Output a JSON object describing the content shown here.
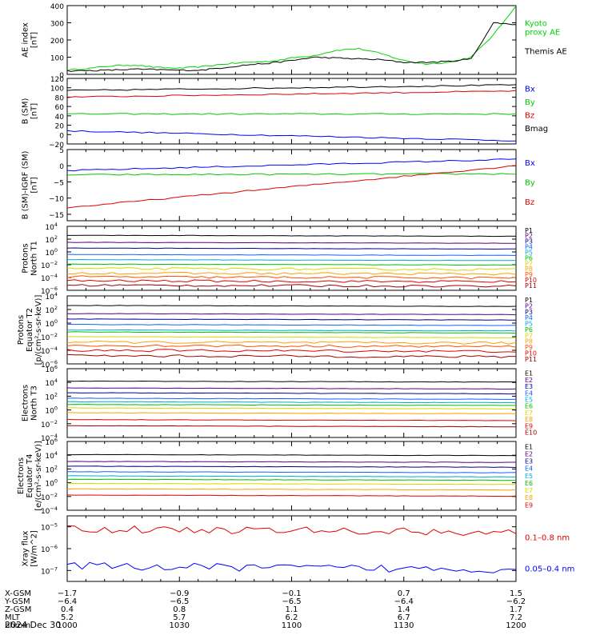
{
  "chart_data": [
    {
      "type": "line",
      "ylabel": [
        "AE index",
        "[nT]"
      ],
      "ylim": [
        0,
        400
      ],
      "yticks": [
        0,
        100,
        200,
        300,
        400
      ],
      "scale": "linear",
      "series": [
        {
          "name": "Kyoto proxy AE",
          "color": "#00d400",
          "legend_lines": [
            "Kyoto",
            "proxy AE"
          ],
          "x": [
            0,
            10,
            20,
            30,
            40,
            50,
            60,
            70,
            80,
            90,
            100,
            110,
            120,
            130,
            140,
            150,
            160,
            170,
            180,
            190,
            200
          ],
          "y": [
            25,
            35,
            50,
            55,
            40,
            35,
            45,
            60,
            70,
            75,
            95,
            110,
            140,
            150,
            120,
            80,
            60,
            70,
            100,
            230,
            400
          ]
        },
        {
          "name": "Themis AE",
          "color": "#000000",
          "legend_lines": [
            "Themis AE"
          ],
          "x": [
            0,
            10,
            20,
            30,
            40,
            50,
            60,
            70,
            80,
            90,
            100,
            110,
            120,
            130,
            140,
            150,
            160,
            170,
            180,
            190,
            200
          ],
          "y": [
            20,
            22,
            25,
            30,
            28,
            24,
            25,
            40,
            55,
            65,
            80,
            100,
            95,
            90,
            85,
            70,
            70,
            75,
            90,
            300,
            290
          ]
        }
      ]
    },
    {
      "type": "line",
      "ylabel": [
        "B (SM)",
        "[nT]"
      ],
      "ylim": [
        -20,
        120
      ],
      "yticks": [
        -20,
        0,
        20,
        40,
        60,
        80,
        100,
        120
      ],
      "scale": "linear",
      "series": [
        {
          "name": "Bx",
          "color": "#0000ff",
          "y_start": 8,
          "y_end": -13
        },
        {
          "name": "By",
          "color": "#00c800",
          "y_start": 44,
          "y_end": 44
        },
        {
          "name": "Bz",
          "color": "#e00000",
          "y_start": 80,
          "y_end": 93
        },
        {
          "name": "Bmag",
          "color": "#000000",
          "y_start": 94,
          "y_end": 106
        }
      ]
    },
    {
      "type": "line",
      "ylabel": [
        "B (SM)-IGRF (SM)",
        "[nT]"
      ],
      "ylim": [
        -17,
        5
      ],
      "yticks": [
        -15,
        -10,
        -5,
        0,
        5
      ],
      "scale": "linear",
      "series": [
        {
          "name": "Bx",
          "color": "#0000ff",
          "y_start": -1.5,
          "y_end": 2
        },
        {
          "name": "By",
          "color": "#00c800",
          "y_start": -2.8,
          "y_end": -2.5
        },
        {
          "name": "Bz",
          "color": "#e00000",
          "y_start": -13,
          "y_end": 0
        }
      ]
    },
    {
      "type": "line",
      "ylabel": [
        "Protons",
        "North T1"
      ],
      "ylim": [
        -6,
        4
      ],
      "yticks": [
        -6,
        -4,
        -2,
        0,
        2,
        4
      ],
      "scale": "log",
      "series": [
        {
          "name": "P1",
          "color": "#000000",
          "log_level": 2.6
        },
        {
          "name": "P2",
          "color": "#5a0080",
          "log_level": 1.5
        },
        {
          "name": "P3",
          "color": "#000090",
          "log_level": 0.6
        },
        {
          "name": "P4",
          "color": "#1060ff",
          "log_level": -0.4
        },
        {
          "name": "P5",
          "color": "#00a8d8",
          "log_level": -1.2
        },
        {
          "name": "P6",
          "color": "#00c000",
          "log_level": -1.9
        },
        {
          "name": "P7",
          "color": "#d8d800",
          "log_level": -2.6
        },
        {
          "name": "P8",
          "color": "#ffa000",
          "log_level": -3.3
        },
        {
          "name": "P9",
          "color": "#ff5000",
          "log_level": -3.9
        },
        {
          "name": "P10",
          "color": "#e00000",
          "log_level": -4.5
        },
        {
          "name": "P11",
          "color": "#a00000",
          "log_level": -5.2
        }
      ]
    },
    {
      "type": "line",
      "ylabel": [
        "Protons",
        "Equator T2",
        "[p/(cm²-s-sr-keV)]"
      ],
      "ylim": [
        -6,
        4
      ],
      "yticks": [
        -6,
        -4,
        -2,
        0,
        2,
        4
      ],
      "scale": "log",
      "series": [
        {
          "name": "P1",
          "color": "#000000",
          "log_level": 2.6
        },
        {
          "name": "P2",
          "color": "#5a0080",
          "log_level": 1.4
        },
        {
          "name": "P3",
          "color": "#000090",
          "log_level": 0.6
        },
        {
          "name": "P4",
          "color": "#1060ff",
          "log_level": -0.2
        },
        {
          "name": "P5",
          "color": "#00a8d8",
          "log_level": -1.0
        },
        {
          "name": "P6",
          "color": "#00c000",
          "log_level": -1.3
        },
        {
          "name": "P7",
          "color": "#d8d800",
          "log_level": -2.0
        },
        {
          "name": "P8",
          "color": "#ffa000",
          "log_level": -2.8
        },
        {
          "name": "P9",
          "color": "#ff5000",
          "log_level": -3.3
        },
        {
          "name": "P10",
          "color": "#e00000",
          "log_level": -4.0
        },
        {
          "name": "P11",
          "color": "#a00000",
          "log_level": -4.8
        }
      ]
    },
    {
      "type": "line",
      "ylabel": [
        "Electrons",
        "North T3"
      ],
      "ylim": [
        -4,
        6
      ],
      "yticks": [
        -4,
        -2,
        0,
        2,
        4,
        6
      ],
      "scale": "log",
      "series": [
        {
          "name": "E1",
          "color": "#000000",
          "log_level": 4.2
        },
        {
          "name": "E2",
          "color": "#5a0080",
          "log_level": 3.2
        },
        {
          "name": "E3",
          "color": "#000090",
          "log_level": 2.5
        },
        {
          "name": "E4",
          "color": "#1060ff",
          "log_level": 1.7
        },
        {
          "name": "E5",
          "color": "#00a8d8",
          "log_level": 1.2
        },
        {
          "name": "E6",
          "color": "#00c000",
          "log_level": 0.8
        },
        {
          "name": "E7",
          "color": "#d8d800",
          "log_level": 0.3
        },
        {
          "name": "E8",
          "color": "#ffa000",
          "log_level": -0.4
        },
        {
          "name": "E9",
          "color": "#e00000",
          "log_level": -1.4
        },
        {
          "name": "E10",
          "color": "#a00000",
          "log_level": -2.3
        }
      ]
    },
    {
      "type": "line",
      "ylabel": [
        "Electrons",
        "Equator T4",
        "[e/(cm²-s-sr-keV)]"
      ],
      "ylim": [
        -4,
        6
      ],
      "yticks": [
        -4,
        -2,
        0,
        2,
        4,
        6
      ],
      "scale": "log",
      "series": [
        {
          "name": "E1",
          "color": "#000000",
          "log_level": 4.1
        },
        {
          "name": "E2",
          "color": "#5a0080",
          "log_level": 3.1
        },
        {
          "name": "E3",
          "color": "#000090",
          "log_level": 2.4
        },
        {
          "name": "E4",
          "color": "#1060ff",
          "log_level": 1.6
        },
        {
          "name": "E5",
          "color": "#00a8d8",
          "log_level": 1.0
        },
        {
          "name": "E6",
          "color": "#00c000",
          "log_level": 0.5
        },
        {
          "name": "E7",
          "color": "#d8d800",
          "log_level": -0.1
        },
        {
          "name": "E8",
          "color": "#ffa000",
          "log_level": -0.9
        },
        {
          "name": "E9",
          "color": "#e00000",
          "log_level": -1.8
        }
      ]
    },
    {
      "type": "line",
      "ylabel": [
        "Xray flux",
        "[W/m^2]"
      ],
      "ylim": [
        -7.5,
        -4.5
      ],
      "yticks": [
        -7,
        -6,
        -5
      ],
      "scale": "log",
      "series": [
        {
          "name": "0.1–0.8 nm",
          "color": "#e00000",
          "log_level": -5.1
        },
        {
          "name": "0.05–0.4 nm",
          "color": "#0000ff",
          "log_level": -6.8
        }
      ]
    }
  ],
  "x_axis": {
    "rows": [
      {
        "label": "X-GSM",
        "values": [
          "−1.7",
          "−0.9",
          "−0.1",
          "0.7",
          "1.5"
        ]
      },
      {
        "label": "Y-GSM",
        "values": [
          "−6.4",
          "−6.5",
          "−6.5",
          "−6.4",
          "−6.2"
        ]
      },
      {
        "label": "Z-GSM",
        "values": [
          "0.4",
          "0.8",
          "1.1",
          "1.4",
          "1.7"
        ]
      },
      {
        "label": "MLT",
        "values": [
          "5.2",
          "5.7",
          "6.2",
          "6.7",
          "7.2"
        ]
      },
      {
        "label": "hhmm",
        "values": [
          "1000",
          "1030",
          "1100",
          "1130",
          "1200"
        ]
      }
    ],
    "date": "2024 Dec 30"
  }
}
